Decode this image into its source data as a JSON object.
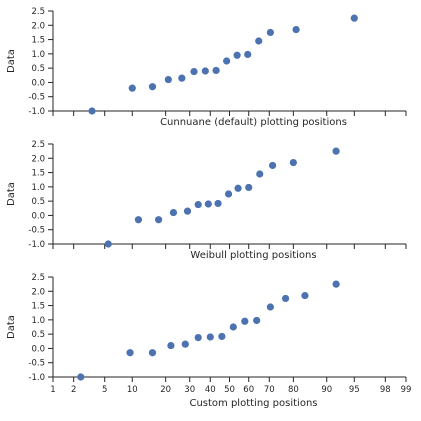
{
  "chart_data": [
    {
      "type": "scatter",
      "title": "",
      "xlabel": "Cunnuane (default) plotting positions",
      "ylabel": "Data",
      "xscale": "probability",
      "xtick_values": [
        1,
        2,
        5,
        10,
        20,
        30,
        40,
        50,
        60,
        70,
        80,
        90,
        95,
        98,
        99
      ],
      "xtick_labels": [
        "",
        "",
        "",
        "",
        "",
        "",
        "",
        "",
        "",
        "",
        "",
        "",
        "",
        "",
        ""
      ],
      "yticks": [
        -1.0,
        -0.5,
        0.0,
        0.5,
        1.0,
        1.5,
        2.0,
        2.5
      ],
      "ytick_labels": [
        "-1.0",
        "-0.5",
        "0.0",
        "0.5",
        "1.0",
        "1.5",
        "2.0",
        "2.5"
      ],
      "ylim": [
        -1.0,
        2.5
      ],
      "xlim": [
        1,
        99
      ],
      "grid": false,
      "marker_color": "#4c72b0",
      "points": [
        {
          "x": 3.5,
          "y": -1.0
        },
        {
          "x": 10.0,
          "y": -0.2
        },
        {
          "x": 15.5,
          "y": -0.15
        },
        {
          "x": 21.0,
          "y": 0.1
        },
        {
          "x": 26.5,
          "y": 0.15
        },
        {
          "x": 32.0,
          "y": 0.38
        },
        {
          "x": 37.5,
          "y": 0.4
        },
        {
          "x": 43.0,
          "y": 0.42
        },
        {
          "x": 48.5,
          "y": 0.75
        },
        {
          "x": 54.0,
          "y": 0.95
        },
        {
          "x": 59.5,
          "y": 0.98
        },
        {
          "x": 65.0,
          "y": 1.45
        },
        {
          "x": 70.5,
          "y": 1.75
        },
        {
          "x": 81.0,
          "y": 1.85
        },
        {
          "x": 95.0,
          "y": 2.25
        }
      ]
    },
    {
      "type": "scatter",
      "title": "",
      "xlabel": "Weibull plotting positions",
      "ylabel": "Data",
      "xscale": "probability",
      "xtick_values": [
        1,
        2,
        5,
        10,
        20,
        30,
        40,
        50,
        60,
        70,
        80,
        90,
        95,
        98,
        99
      ],
      "xtick_labels": [
        "",
        "",
        "",
        "",
        "",
        "",
        "",
        "",
        "",
        "",
        "",
        "",
        "",
        "",
        ""
      ],
      "yticks": [
        -1.0,
        -0.5,
        0.0,
        0.5,
        1.0,
        1.5,
        2.0,
        2.5
      ],
      "ytick_labels": [
        "-1.0",
        "-0.5",
        "0.0",
        "0.5",
        "1.0",
        "1.5",
        "2.0",
        "2.5"
      ],
      "ylim": [
        -1.0,
        2.5
      ],
      "xlim": [
        1,
        99
      ],
      "grid": false,
      "marker_color": "#4c72b0",
      "points": [
        {
          "x": 5.5,
          "y": -1.0
        },
        {
          "x": 11.5,
          "y": -0.15
        },
        {
          "x": 17.5,
          "y": -0.15
        },
        {
          "x": 23.0,
          "y": 0.1
        },
        {
          "x": 29.0,
          "y": 0.15
        },
        {
          "x": 34.0,
          "y": 0.38
        },
        {
          "x": 39.0,
          "y": 0.4
        },
        {
          "x": 44.0,
          "y": 0.42
        },
        {
          "x": 49.5,
          "y": 0.75
        },
        {
          "x": 54.5,
          "y": 0.95
        },
        {
          "x": 60.0,
          "y": 0.98
        },
        {
          "x": 65.5,
          "y": 1.45
        },
        {
          "x": 71.5,
          "y": 1.75
        },
        {
          "x": 80.0,
          "y": 1.85
        },
        {
          "x": 92.0,
          "y": 2.25
        }
      ]
    },
    {
      "type": "scatter",
      "title": "",
      "xlabel": "Custom plotting positions",
      "ylabel": "Data",
      "xscale": "probability",
      "xtick_values": [
        1,
        2,
        5,
        10,
        20,
        30,
        40,
        50,
        60,
        70,
        80,
        90,
        95,
        98,
        99
      ],
      "xtick_labels": [
        "1",
        "2",
        "5",
        "10",
        "20",
        "30",
        "40",
        "50",
        "60",
        "70",
        "80",
        "90",
        "95",
        "98",
        "99"
      ],
      "yticks": [
        -1.0,
        -0.5,
        0.0,
        0.5,
        1.0,
        1.5,
        2.0,
        2.5
      ],
      "ytick_labels": [
        "-1.0",
        "-0.5",
        "0.0",
        "0.5",
        "1.0",
        "1.5",
        "2.0",
        "2.5"
      ],
      "ylim": [
        -1.0,
        2.5
      ],
      "xlim": [
        1,
        99
      ],
      "grid": false,
      "marker_color": "#4c72b0",
      "points": [
        {
          "x": 2.5,
          "y": -1.0
        },
        {
          "x": 9.5,
          "y": -0.15
        },
        {
          "x": 15.5,
          "y": -0.15
        },
        {
          "x": 22.0,
          "y": 0.1
        },
        {
          "x": 28.0,
          "y": 0.15
        },
        {
          "x": 34.0,
          "y": 0.38
        },
        {
          "x": 40.0,
          "y": 0.4
        },
        {
          "x": 46.0,
          "y": 0.42
        },
        {
          "x": 52.0,
          "y": 0.75
        },
        {
          "x": 58.0,
          "y": 0.95
        },
        {
          "x": 64.0,
          "y": 0.98
        },
        {
          "x": 70.5,
          "y": 1.45
        },
        {
          "x": 77.0,
          "y": 1.75
        },
        {
          "x": 84.0,
          "y": 1.85
        },
        {
          "x": 92.0,
          "y": 2.25
        }
      ]
    }
  ]
}
